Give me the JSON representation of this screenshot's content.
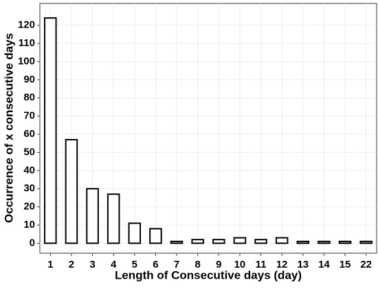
{
  "chart_data": {
    "type": "bar",
    "x_label": "Length of Consecutive days (day)",
    "y_label": "Occurrence of x consecutive days",
    "categories": [
      "1",
      "2",
      "3",
      "4",
      "5",
      "6",
      "7",
      "8",
      "9",
      "10",
      "11",
      "12",
      "13",
      "14",
      "15",
      "22"
    ],
    "values": [
      124,
      57,
      30,
      27,
      11,
      8,
      1,
      2,
      2,
      3,
      2,
      3,
      1,
      1,
      1,
      1
    ],
    "color": "#ffffff",
    "edge_color": "#000000",
    "ylim": [
      -5.5,
      132
    ],
    "yticks": [
      0,
      10,
      20,
      30,
      40,
      50,
      60,
      70,
      80,
      90,
      100,
      110,
      120
    ],
    "grid": true
  }
}
